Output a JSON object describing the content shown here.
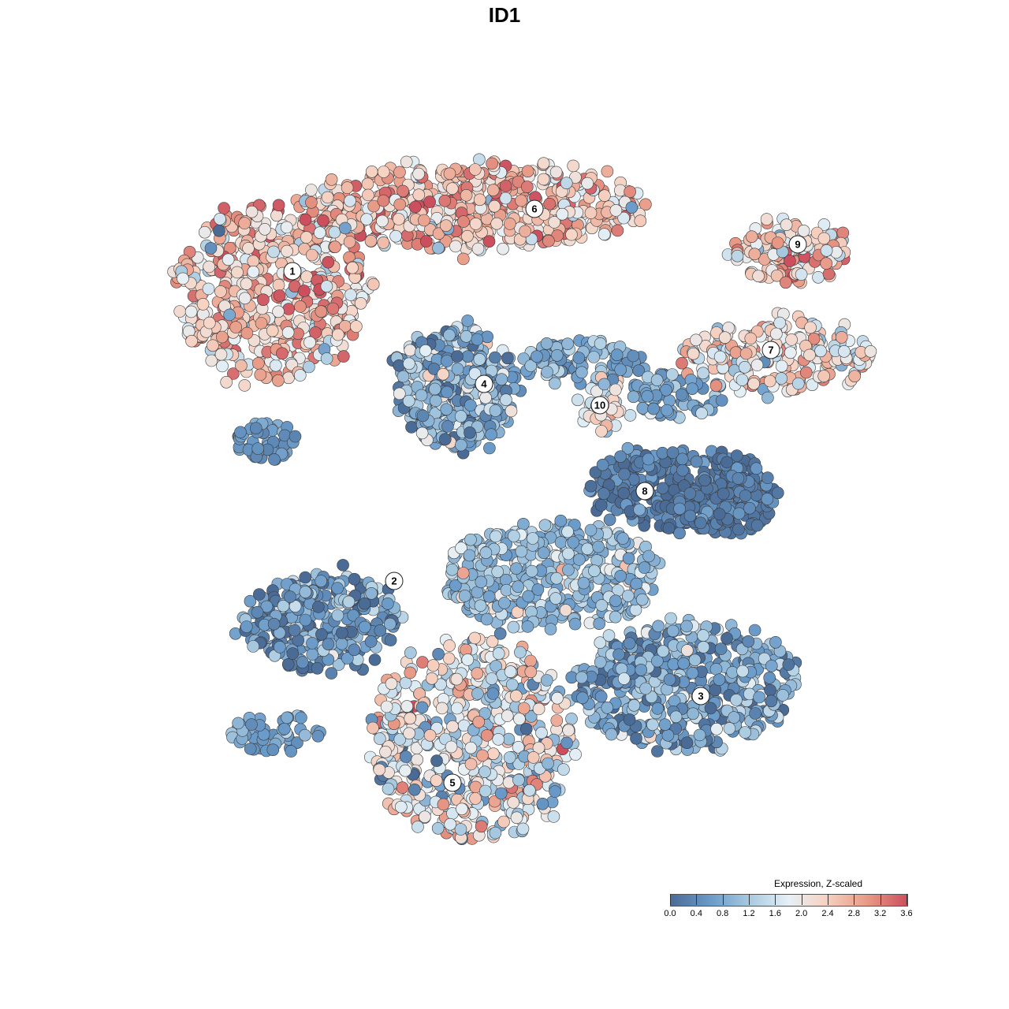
{
  "title": "ID1",
  "legend": {
    "title": "Expression, Z-scaled",
    "ticks": [
      "0.0",
      "0.4",
      "0.8",
      "1.2",
      "1.6",
      "2.0",
      "2.4",
      "2.8",
      "3.2",
      "3.6"
    ]
  },
  "colors": {
    "low": "#4a6b96",
    "mid_low": "#6b9bc9",
    "light_blue": "#a7c9e0",
    "mid": "#e6f0f6",
    "light_red": "#f6d3c3",
    "mid_high": "#e89a86",
    "high": "#cc4f5e"
  },
  "chart_data": {
    "type": "scatter",
    "title": "ID1",
    "color_scale": {
      "label": "Expression, Z-scaled",
      "range": [
        0.0,
        3.6
      ]
    },
    "clusters": [
      {
        "label": "1",
        "mean_expression": 2.4
      },
      {
        "label": "2",
        "mean_expression": 0.6
      },
      {
        "label": "3",
        "mean_expression": 0.8
      },
      {
        "label": "4",
        "mean_expression": 0.9
      },
      {
        "label": "5",
        "mean_expression": 1.8
      },
      {
        "label": "6",
        "mean_expression": 2.5
      },
      {
        "label": "7",
        "mean_expression": 2.1
      },
      {
        "label": "8",
        "mean_expression": 0.2
      },
      {
        "label": "9",
        "mean_expression": 2.3
      },
      {
        "label": "10",
        "mean_expression": 2.0
      }
    ]
  }
}
